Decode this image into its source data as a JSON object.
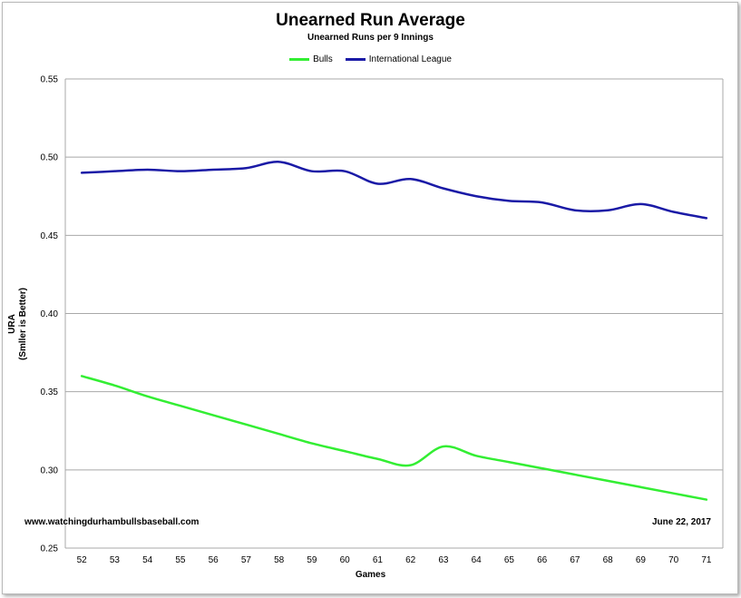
{
  "chart_data": {
    "type": "line",
    "title": "Unearned Run Average",
    "subtitle": "Unearned Runs per 9 Innings",
    "xlabel": "Games",
    "ylabel_line1": "URA",
    "ylabel_line2": "(Smller is Better)",
    "x": [
      52,
      53,
      54,
      55,
      56,
      57,
      58,
      59,
      60,
      61,
      62,
      63,
      64,
      65,
      66,
      67,
      68,
      69,
      70,
      71
    ],
    "ylim": [
      0.25,
      0.55
    ],
    "yticks": [
      "0.25",
      "0.30",
      "0.35",
      "0.40",
      "0.45",
      "0.50",
      "0.55"
    ],
    "grid": true,
    "legend_position": "top",
    "series": [
      {
        "name": "Bulls",
        "color": "#33ee33",
        "values": [
          0.36,
          0.354,
          0.347,
          0.341,
          0.335,
          0.329,
          0.323,
          0.317,
          0.312,
          0.307,
          0.303,
          0.315,
          0.309,
          0.305,
          0.301,
          0.297,
          0.293,
          0.289,
          0.285,
          0.281
        ]
      },
      {
        "name": "International League",
        "color": "#1a1aa6",
        "values": [
          0.49,
          0.491,
          0.492,
          0.491,
          0.492,
          0.493,
          0.497,
          0.491,
          0.491,
          0.483,
          0.486,
          0.48,
          0.475,
          0.472,
          0.471,
          0.466,
          0.466,
          0.47,
          0.465,
          0.461
        ]
      }
    ],
    "annotations": {
      "source": "www.watchingdurhambullsbaseball.com",
      "date": "June 22, 2017"
    }
  }
}
